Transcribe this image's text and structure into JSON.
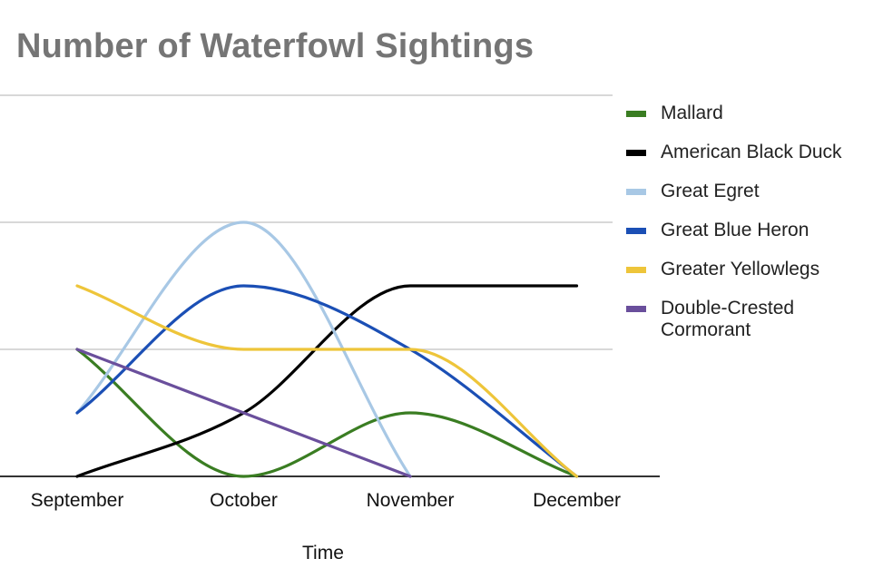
{
  "chart_data": {
    "type": "line",
    "title": "Number of Waterfowl Sightings",
    "xlabel": "Time",
    "ylabel": "",
    "categories": [
      "September",
      "October",
      "November",
      "December"
    ],
    "ylim": [
      0,
      3
    ],
    "grid": true,
    "smooth": true,
    "legend_position": "right",
    "series": [
      {
        "name": "Mallard",
        "color": "#3a7d22",
        "values": [
          1,
          0,
          0.5,
          0
        ]
      },
      {
        "name": "American Black Duck",
        "color": "#000000",
        "values": [
          0,
          0.5,
          1.5,
          1.5
        ]
      },
      {
        "name": "Great Egret",
        "color": "#a8c8e5",
        "values": [
          0.5,
          2,
          0,
          null
        ]
      },
      {
        "name": "Great Blue Heron",
        "color": "#1b4fb5",
        "values": [
          0.5,
          1.5,
          1,
          0
        ]
      },
      {
        "name": "Greater Yellowlegs",
        "color": "#eec53a",
        "values": [
          1.5,
          1,
          1,
          0
        ]
      },
      {
        "name": "Double-Crested Cormorant",
        "color": "#6a4f9c",
        "values": [
          1,
          0.5,
          0,
          null
        ]
      }
    ]
  }
}
